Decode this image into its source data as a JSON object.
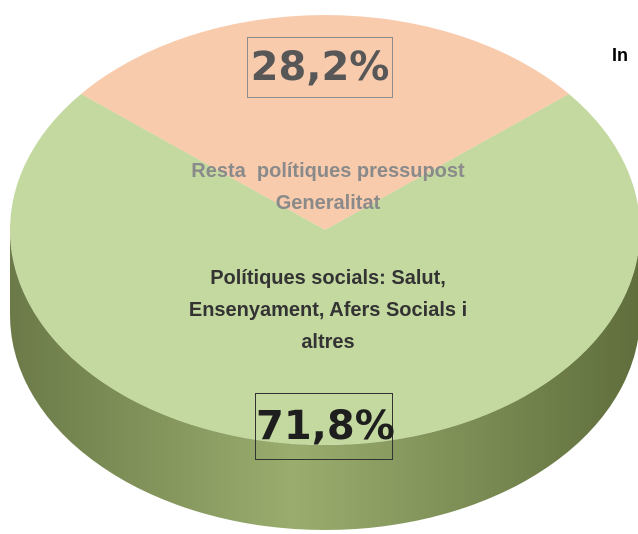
{
  "chart_data": {
    "type": "pie",
    "title": "In",
    "categories": [
      "Resta  polítiques pressupost Generalitat",
      "Polítiques socials: Salut, Ensenyament, Afers Socials i altres"
    ],
    "values": [
      28.2,
      71.8
    ],
    "value_labels": [
      "28,2%",
      "71,8%"
    ],
    "colors": [
      "#f8cbad",
      "#c4d9a0"
    ]
  }
}
